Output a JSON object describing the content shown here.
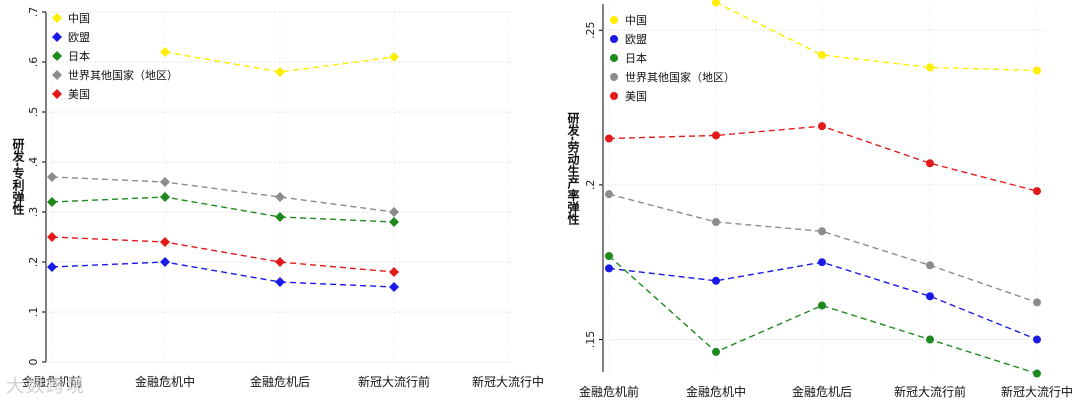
{
  "chart_data": [
    {
      "type": "line",
      "ylabel": "研发-专利弹性",
      "categories": [
        "金融危机前",
        "金融危机中",
        "金融危机后",
        "新冠大流行前",
        "新冠大流行中"
      ],
      "ylim": [
        0,
        0.7
      ],
      "yticks": [
        0,
        0.1,
        0.2,
        0.3,
        0.4,
        0.5,
        0.6,
        0.7
      ],
      "ytick_labels": [
        "0",
        ".1",
        ".2",
        ".3",
        ".4",
        ".5",
        ".6",
        ".7"
      ],
      "marker": "diamond",
      "legend_position": "top-left",
      "grid": true,
      "series": [
        {
          "name": "中国",
          "color": "#ffee00",
          "values": [
            null,
            0.62,
            0.58,
            0.61,
            null
          ]
        },
        {
          "name": "欧盟",
          "color": "#1a1ae6",
          "values": [
            0.19,
            0.2,
            0.16,
            0.15,
            null
          ]
        },
        {
          "name": "日本",
          "color": "#1e8a1e",
          "values": [
            0.32,
            0.33,
            0.29,
            0.28,
            null
          ]
        },
        {
          "name": "世界其他国家（地区）",
          "color": "#8c8c8c",
          "values": [
            0.37,
            0.36,
            0.33,
            0.3,
            null
          ]
        },
        {
          "name": "美国",
          "color": "#e31a1a",
          "values": [
            0.25,
            0.24,
            0.2,
            0.18,
            null
          ]
        }
      ]
    },
    {
      "type": "line",
      "ylabel": "研发-劳动生产率弹性",
      "categories": [
        "金融危机前",
        "金融危机中",
        "金融危机后",
        "新冠大流行前",
        "新冠大流行中"
      ],
      "ylim": [
        0.1395,
        0.2585
      ],
      "yticks": [
        0.15,
        0.2,
        0.25
      ],
      "ytick_labels": [
        ".15",
        ".2",
        ".25"
      ],
      "marker": "circle",
      "legend_position": "top-left",
      "grid": true,
      "series": [
        {
          "name": "中国",
          "color": "#ffee00",
          "values": [
            null,
            0.259,
            0.242,
            0.238,
            0.237
          ]
        },
        {
          "name": "欧盟",
          "color": "#1a1ae6",
          "values": [
            0.173,
            0.169,
            0.175,
            0.164,
            0.15
          ]
        },
        {
          "name": "日本",
          "color": "#1e8a1e",
          "values": [
            0.177,
            0.146,
            0.161,
            0.15,
            0.139
          ]
        },
        {
          "name": "世界其他国家（地区）",
          "color": "#8c8c8c",
          "values": [
            0.197,
            0.188,
            0.185,
            0.174,
            0.162
          ]
        },
        {
          "name": "美国",
          "color": "#e31a1a",
          "values": [
            0.215,
            0.216,
            0.219,
            0.207,
            0.198
          ]
        }
      ]
    }
  ],
  "watermark": "大数跨境"
}
